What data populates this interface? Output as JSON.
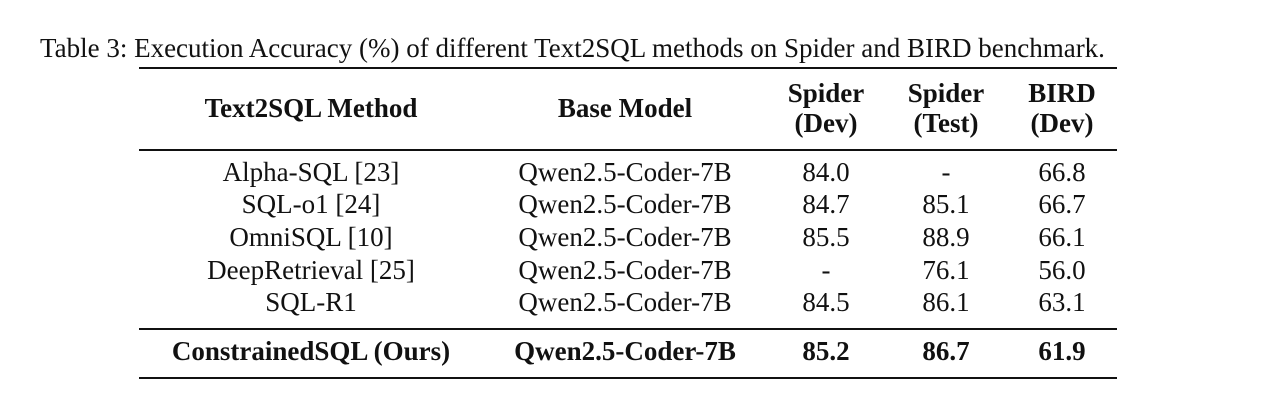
{
  "caption": "Table 3: Execution Accuracy (%) of different Text2SQL methods on Spider and BIRD benchmark.",
  "headers": {
    "method": "Text2SQL Method",
    "base_model": "Base Model",
    "spider_dev_1": "Spider",
    "spider_dev_2": "(Dev)",
    "spider_test_1": "Spider",
    "spider_test_2": "(Test)",
    "bird_dev_1": "BIRD",
    "bird_dev_2": "(Dev)"
  },
  "rows": [
    {
      "method": "Alpha-SQL [23]",
      "base_model": "Qwen2.5-Coder-7B",
      "spider_dev": "84.0",
      "spider_test": "-",
      "bird_dev": "66.8"
    },
    {
      "method": "SQL-o1 [24]",
      "base_model": "Qwen2.5-Coder-7B",
      "spider_dev": "84.7",
      "spider_test": "85.1",
      "bird_dev": "66.7"
    },
    {
      "method": "OmniSQL [10]",
      "base_model": "Qwen2.5-Coder-7B",
      "spider_dev": "85.5",
      "spider_test": "88.9",
      "bird_dev": "66.1"
    },
    {
      "method": "DeepRetrieval [25]",
      "base_model": "Qwen2.5-Coder-7B",
      "spider_dev": "-",
      "spider_test": "76.1",
      "bird_dev": "56.0"
    },
    {
      "method": "SQL-R1",
      "base_model": "Qwen2.5-Coder-7B",
      "spider_dev": "84.5",
      "spider_test": "86.1",
      "bird_dev": "63.1"
    }
  ],
  "ours": {
    "method": "ConstrainedSQL (Ours)",
    "base_model": "Qwen2.5-Coder-7B",
    "spider_dev": "85.2",
    "spider_test": "86.7",
    "bird_dev": "61.9"
  }
}
